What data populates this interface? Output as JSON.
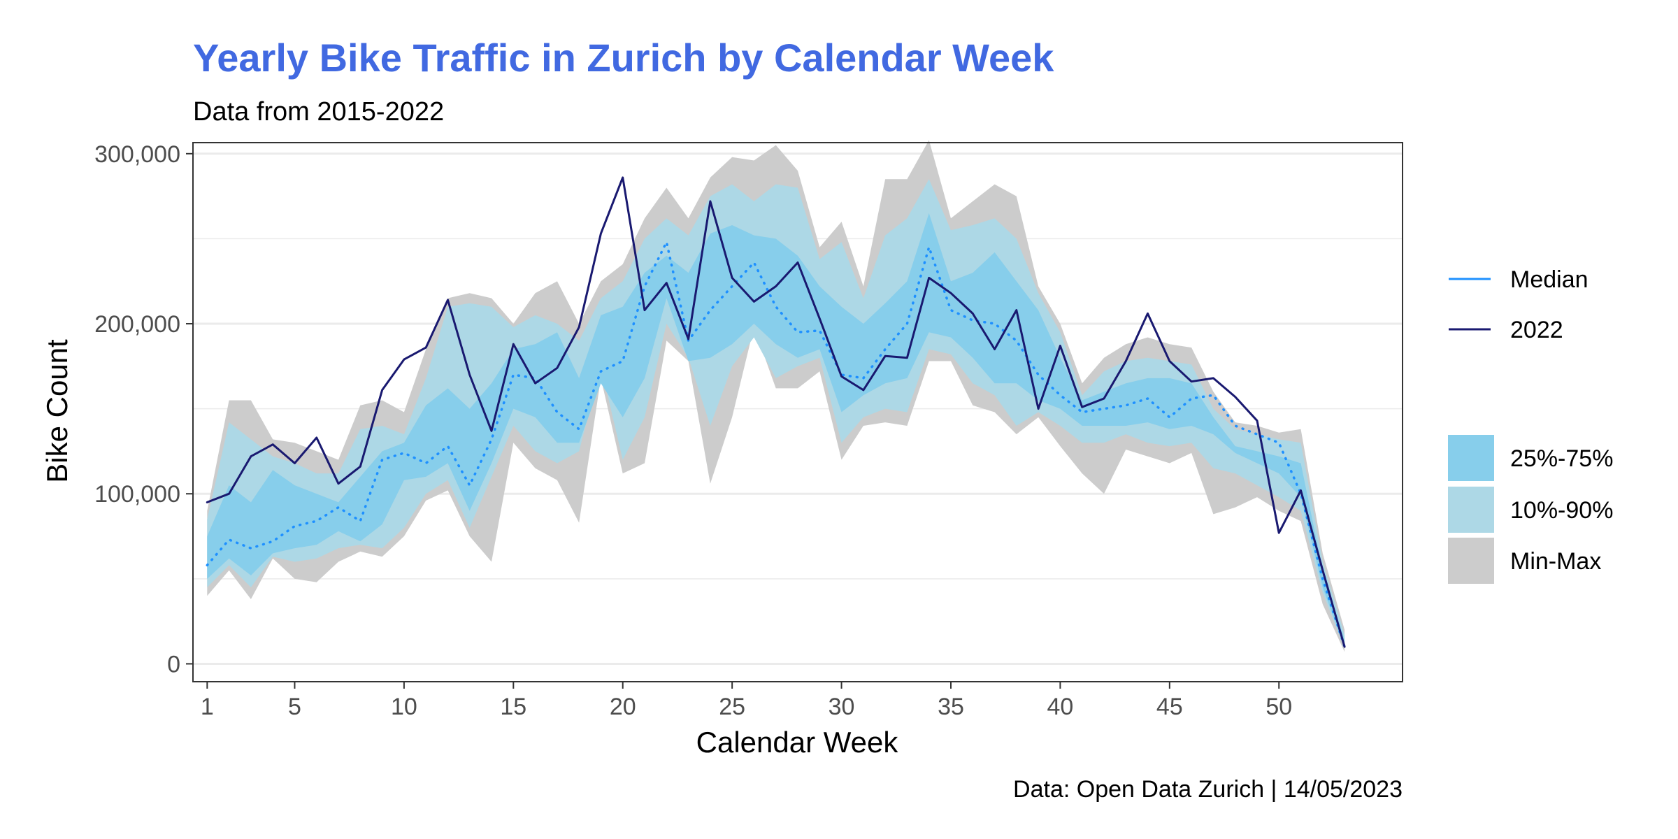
{
  "chart_data": {
    "type": "area",
    "title": "Yearly Bike Traffic in Zurich by Calendar Week",
    "subtitle": "Data from 2015-2022",
    "xlabel": "Calendar Week",
    "ylabel": "Bike Count",
    "caption": "Data: Open Data Zurich | 14/05/2023",
    "xlim": [
      1,
      53
    ],
    "ylim": [
      0,
      300000
    ],
    "x_ticks": [
      1,
      5,
      10,
      15,
      20,
      25,
      30,
      35,
      40,
      45,
      50
    ],
    "y_ticks": [
      0,
      100000,
      200000,
      300000
    ],
    "y_tick_labels": [
      "0",
      "100,000",
      "200,000",
      "300,000"
    ],
    "grid": true,
    "legend_position": "right",
    "x": [
      1,
      2,
      3,
      4,
      5,
      6,
      7,
      8,
      9,
      10,
      11,
      12,
      13,
      14,
      15,
      16,
      17,
      18,
      19,
      20,
      21,
      22,
      23,
      24,
      25,
      26,
      27,
      28,
      29,
      30,
      31,
      32,
      33,
      34,
      35,
      36,
      37,
      38,
      39,
      40,
      41,
      42,
      43,
      44,
      45,
      46,
      47,
      48,
      49,
      50,
      51,
      52,
      53
    ],
    "series": [
      {
        "name": "Median",
        "style": "dotted",
        "values": [
          58000,
          73000,
          68000,
          72000,
          81000,
          84000,
          92000,
          84000,
          120000,
          124000,
          118000,
          128000,
          105000,
          132000,
          170000,
          168000,
          148000,
          138000,
          172000,
          178000,
          222000,
          248000,
          190000,
          208000,
          222000,
          236000,
          210000,
          195000,
          196000,
          170000,
          168000,
          185000,
          200000,
          245000,
          208000,
          202000,
          200000,
          190000,
          170000,
          158000,
          148000,
          150000,
          152000,
          156000,
          145000,
          156000,
          158000,
          140000,
          135000,
          130000,
          100000,
          50000,
          10000
        ]
      },
      {
        "name": "2022",
        "style": "solid",
        "values": [
          95000,
          100000,
          122000,
          129000,
          118000,
          133000,
          106000,
          116000,
          161000,
          179000,
          186000,
          214000,
          170000,
          137000,
          188000,
          165000,
          174000,
          198000,
          253000,
          286000,
          208000,
          224000,
          191000,
          272000,
          227000,
          213000,
          222000,
          236000,
          203000,
          169000,
          161000,
          181000,
          180000,
          227000,
          218000,
          206000,
          185000,
          208000,
          150000,
          187000,
          151000,
          156000,
          178000,
          206000,
          178000,
          166000,
          168000,
          157000,
          143000,
          77000,
          102000,
          55000,
          10000
        ]
      }
    ],
    "bands": [
      {
        "name": "Min-Max",
        "low": [
          40000,
          55000,
          38000,
          62000,
          50000,
          48000,
          60000,
          66000,
          63000,
          75000,
          96000,
          102000,
          75000,
          60000,
          130000,
          115000,
          108000,
          83000,
          168000,
          112000,
          118000,
          190000,
          178000,
          106000,
          145000,
          198000,
          162000,
          162000,
          172000,
          120000,
          140000,
          142000,
          140000,
          178000,
          178000,
          152000,
          148000,
          135000,
          145000,
          128000,
          112000,
          100000,
          126000,
          122000,
          118000,
          124000,
          88000,
          92000,
          98000,
          90000,
          84000,
          35000,
          7000
        ],
        "high": [
          90000,
          155000,
          155000,
          132000,
          130000,
          125000,
          120000,
          152000,
          155000,
          148000,
          185000,
          215000,
          218000,
          215000,
          200000,
          218000,
          225000,
          200000,
          225000,
          235000,
          262000,
          280000,
          262000,
          286000,
          298000,
          296000,
          305000,
          290000,
          245000,
          260000,
          222000,
          285000,
          285000,
          308000,
          262000,
          272000,
          282000,
          275000,
          222000,
          200000,
          165000,
          180000,
          188000,
          192000,
          188000,
          186000,
          160000,
          142000,
          140000,
          136000,
          138000,
          65000,
          20000
        ]
      },
      {
        "name": "10%-90%",
        "low": [
          45000,
          58000,
          45000,
          63000,
          60000,
          62000,
          68000,
          70000,
          68000,
          80000,
          100000,
          108000,
          80000,
          110000,
          140000,
          125000,
          118000,
          125000,
          175000,
          120000,
          145000,
          200000,
          180000,
          140000,
          175000,
          192000,
          168000,
          175000,
          180000,
          130000,
          145000,
          150000,
          148000,
          185000,
          182000,
          165000,
          158000,
          140000,
          148000,
          140000,
          130000,
          130000,
          135000,
          130000,
          128000,
          130000,
          115000,
          112000,
          105000,
          98000,
          90000,
          42000,
          9000
        ],
        "high": [
          85000,
          142000,
          132000,
          122000,
          118000,
          112000,
          112000,
          138000,
          140000,
          135000,
          168000,
          210000,
          212000,
          210000,
          198000,
          205000,
          200000,
          190000,
          215000,
          225000,
          250000,
          262000,
          252000,
          275000,
          282000,
          272000,
          282000,
          280000,
          238000,
          248000,
          215000,
          252000,
          262000,
          285000,
          255000,
          258000,
          262000,
          250000,
          218000,
          195000,
          158000,
          172000,
          178000,
          180000,
          178000,
          176000,
          150000,
          138000,
          135000,
          132000,
          130000,
          60000,
          17000
        ]
      },
      {
        "name": "25%-75%",
        "low": [
          50000,
          62000,
          52000,
          65000,
          68000,
          70000,
          78000,
          72000,
          82000,
          108000,
          110000,
          118000,
          90000,
          118000,
          150000,
          145000,
          130000,
          130000,
          165000,
          145000,
          168000,
          215000,
          178000,
          180000,
          188000,
          200000,
          188000,
          180000,
          185000,
          148000,
          158000,
          165000,
          168000,
          195000,
          192000,
          180000,
          165000,
          165000,
          155000,
          150000,
          140000,
          140000,
          140000,
          142000,
          138000,
          140000,
          135000,
          124000,
          118000,
          112000,
          98000,
          45000,
          9500
        ],
        "high": [
          75000,
          105000,
          95000,
          114000,
          105000,
          100000,
          95000,
          110000,
          125000,
          130000,
          152000,
          162000,
          150000,
          165000,
          185000,
          188000,
          195000,
          168000,
          205000,
          210000,
          230000,
          240000,
          230000,
          253000,
          258000,
          252000,
          250000,
          240000,
          222000,
          210000,
          200000,
          212000,
          225000,
          265000,
          225000,
          230000,
          242000,
          225000,
          208000,
          180000,
          155000,
          160000,
          165000,
          168000,
          168000,
          165000,
          145000,
          128000,
          125000,
          122000,
          118000,
          55000,
          14000
        ]
      }
    ],
    "legend": [
      {
        "label": "Median",
        "kind": "line"
      },
      {
        "label": "2022",
        "kind": "line"
      },
      {
        "label": "25%-75%",
        "kind": "fill"
      },
      {
        "label": "10%-90%",
        "kind": "fill"
      },
      {
        "label": "Min-Max",
        "kind": "fill"
      }
    ],
    "colors": {
      "title": "#4169e1",
      "median": "#1e90ff",
      "line_2022": "#191970",
      "band_25_75": "#87ceeb",
      "band_10_90": "#add8e6",
      "band_min_max": "#cccccc",
      "grid": "#ebebeb",
      "panel_border": "#333333"
    }
  }
}
